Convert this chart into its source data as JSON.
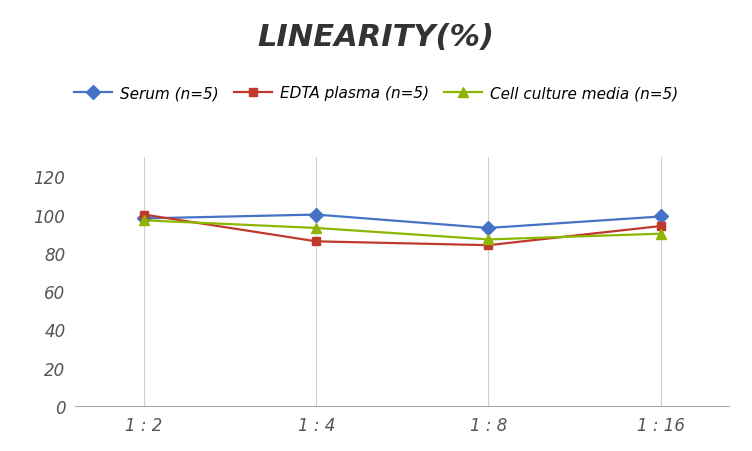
{
  "title": "LINEARITY(%)",
  "x_labels": [
    "1 : 2",
    "1 : 4",
    "1 : 8",
    "1 : 16"
  ],
  "x_positions": [
    0,
    1,
    2,
    3
  ],
  "series": [
    {
      "label": "Serum (n=5)",
      "values": [
        98,
        100,
        93,
        99
      ],
      "color": "#4472C4",
      "marker": "D",
      "marker_size": 7,
      "linewidth": 1.6
    },
    {
      "label": "EDTA plasma (n=5)",
      "values": [
        100,
        86,
        84,
        94
      ],
      "color": "#C0392B",
      "marker": "s",
      "marker_size": 6,
      "linewidth": 1.6
    },
    {
      "label": "Cell culture media (n=5)",
      "values": [
        97,
        93,
        87,
        90
      ],
      "color": "#8DB600",
      "marker": "^",
      "marker_size": 7,
      "linewidth": 1.6
    }
  ],
  "ylim": [
    0,
    130
  ],
  "yticks": [
    0,
    20,
    40,
    60,
    80,
    100,
    120
  ],
  "background_color": "#ffffff",
  "grid_color": "#d0d0d0",
  "title_fontsize": 22,
  "tick_fontsize": 12,
  "legend_fontsize": 11
}
